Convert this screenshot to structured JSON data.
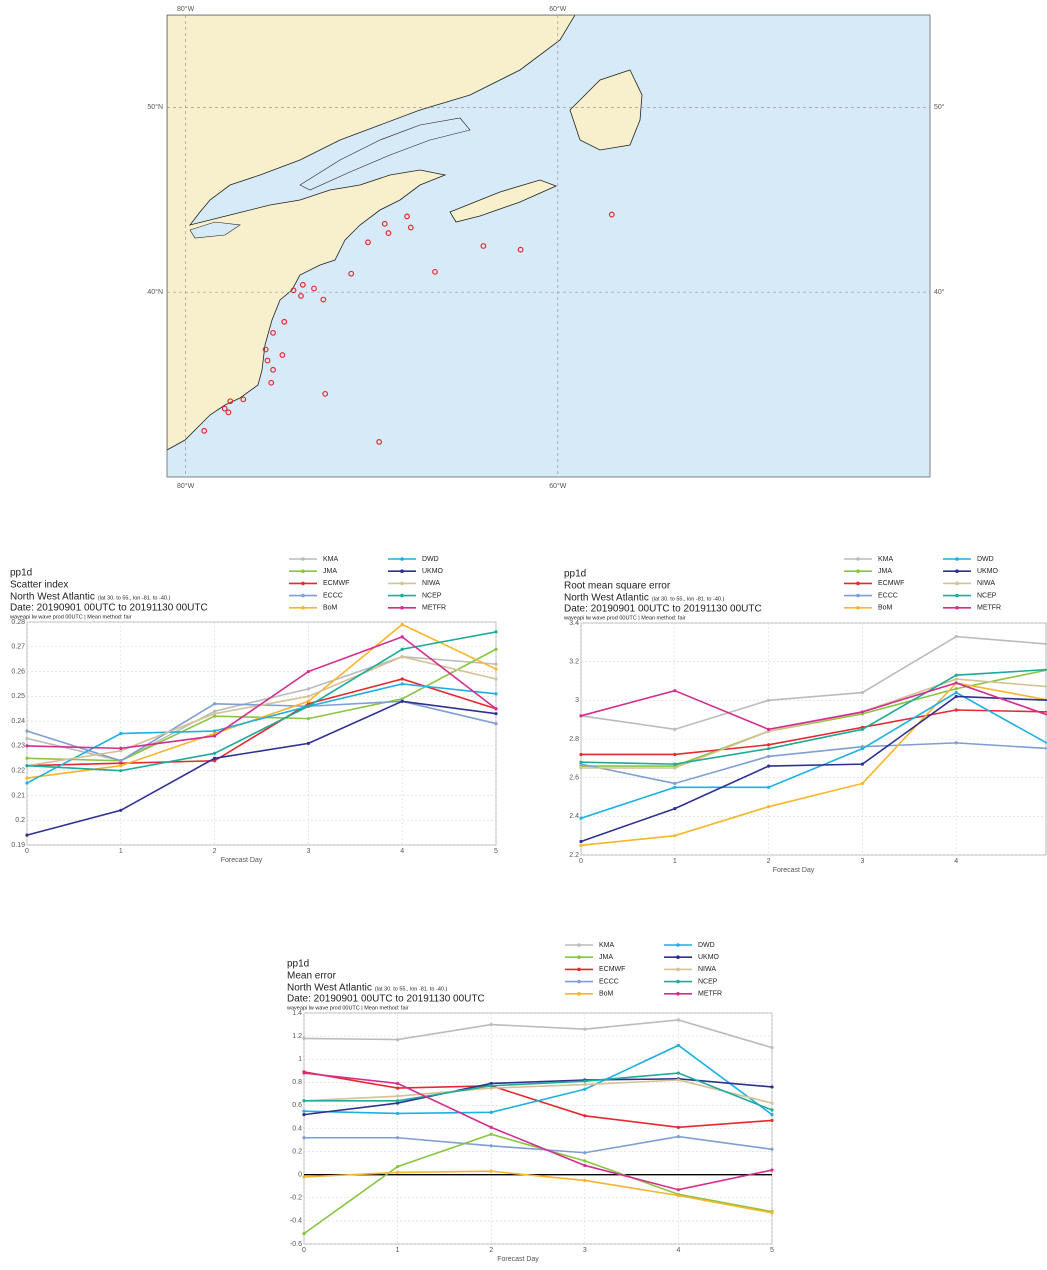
{
  "chart_data": [
    {
      "type": "map",
      "xlim": [
        -81,
        -40
      ],
      "ylim": [
        30,
        55
      ],
      "xticks": [
        {
          "value": -80,
          "label": "80°W"
        },
        {
          "value": -60,
          "label": "60°W"
        }
      ],
      "yticks": [
        {
          "value": 50,
          "label": "50°N"
        },
        {
          "value": 40,
          "label": "40°N"
        }
      ],
      "y2ticks": [
        {
          "value": 50,
          "label": "50°"
        },
        {
          "value": 40,
          "label": "40°"
        }
      ],
      "color": "#e8282e",
      "grid": true,
      "x": [
        -57.1,
        -68.1,
        -69.3,
        -67.9,
        -69.1,
        -70.2,
        -64.0,
        -62.0,
        -66.6,
        -71.1,
        -73.7,
        -73.1,
        -74.2,
        -73.8,
        -72.6,
        -74.7,
        -75.3,
        -75.7,
        -74.8,
        -75.6,
        -75.3,
        -75.4,
        -72.5,
        -76.9,
        -77.6,
        -77.9,
        -77.7,
        -79.0,
        -69.6
      ],
      "values": [
        44.2,
        44.1,
        43.7,
        43.5,
        43.2,
        42.7,
        42.5,
        42.3,
        41.1,
        41.0,
        40.4,
        40.2,
        40.1,
        39.8,
        39.6,
        38.4,
        37.8,
        36.9,
        36.6,
        36.3,
        35.8,
        35.1,
        34.5,
        34.2,
        34.1,
        33.7,
        33.5,
        32.5,
        31.9
      ]
    },
    {
      "type": "line",
      "title": "pp1d",
      "subtitle": "Scatter index",
      "region": "North West Atlantic",
      "region_note": "(lat 30. to 55., lon -81. to -40.)",
      "date_range": "Date: 20190901 00UTC to 20191130 00UTC",
      "source_note": "waveapi lw wave prod 00UTC | Mean method: fair",
      "xlabel": "Forecast Day",
      "x": [
        0,
        1,
        2,
        3,
        4,
        5
      ],
      "xlim": [
        0,
        5
      ],
      "xticks": [
        0,
        1,
        2,
        3,
        4,
        5
      ],
      "ylim": [
        0.19,
        0.28
      ],
      "yticks": [
        0.19,
        0.2,
        0.21,
        0.22,
        0.23,
        0.24,
        0.25,
        0.26,
        0.27,
        0.28
      ],
      "grid": true,
      "series": [
        {
          "name": "KMA",
          "color": "#bbbbbb",
          "values": [
            0.233,
            0.224,
            0.244,
            0.253,
            0.266,
            0.263
          ]
        },
        {
          "name": "JMA",
          "color": "#88c540",
          "values": [
            0.225,
            0.224,
            0.242,
            0.241,
            0.249,
            0.269
          ]
        },
        {
          "name": "ECMWF",
          "color": "#e8282e",
          "values": [
            0.222,
            0.223,
            0.224,
            0.247,
            0.257,
            0.245
          ]
        },
        {
          "name": "ECCC",
          "color": "#7f9ed4",
          "values": [
            0.236,
            0.224,
            0.247,
            0.246,
            0.248,
            0.239
          ]
        },
        {
          "name": "BoM",
          "color": "#f7b52a",
          "values": [
            0.217,
            0.222,
            0.235,
            0.248,
            0.279,
            0.261
          ]
        },
        {
          "name": "DWD",
          "color": "#1cb0e3",
          "values": [
            0.215,
            0.235,
            0.236,
            0.246,
            0.255,
            0.251
          ]
        },
        {
          "name": "UKMO",
          "color": "#2e3192",
          "values": [
            0.194,
            0.204,
            0.225,
            0.231,
            0.248,
            0.243
          ]
        },
        {
          "name": "NIWA",
          "color": "#d4c195",
          "values": [
            0.222,
            0.228,
            0.243,
            0.25,
            0.266,
            0.257
          ]
        },
        {
          "name": "NCEP",
          "color": "#1eab98",
          "values": [
            0.222,
            0.22,
            0.227,
            0.246,
            0.269,
            0.276
          ]
        },
        {
          "name": "METFR",
          "color": "#d42c8f",
          "values": [
            0.23,
            0.229,
            0.234,
            0.26,
            0.274,
            0.245
          ]
        }
      ]
    },
    {
      "type": "line",
      "title": "pp1d",
      "subtitle": "Root mean square error",
      "region": "North West Atlantic",
      "region_note": "(lat 30. to 55., lon -81. to -40.)",
      "date_range": "Date: 20190901 00UTC to 20191130 00UTC",
      "source_note": "waveapi lw wave prod 00UTC | Mean method: fair",
      "xlabel": "Forecast Day",
      "x": [
        0,
        1,
        2,
        3,
        4,
        5
      ],
      "xlim": [
        0,
        5
      ],
      "xticks": [
        0,
        1,
        2,
        3,
        4
      ],
      "ylim": [
        2.2,
        3.4
      ],
      "yticks": [
        2.2,
        2.4,
        2.6,
        2.8,
        3,
        3.2,
        3.4
      ],
      "grid": true,
      "series": [
        {
          "name": "KMA",
          "color": "#bbbbbb",
          "values": [
            2.92,
            2.85,
            3.0,
            3.04,
            3.33,
            3.29
          ]
        },
        {
          "name": "JMA",
          "color": "#88c540",
          "values": [
            2.66,
            2.66,
            2.84,
            2.93,
            3.06,
            3.16
          ]
        },
        {
          "name": "ECMWF",
          "color": "#e8282e",
          "values": [
            2.72,
            2.72,
            2.77,
            2.86,
            2.95,
            2.94
          ]
        },
        {
          "name": "ECCC",
          "color": "#7f9ed4",
          "values": [
            2.67,
            2.57,
            2.71,
            2.76,
            2.78,
            2.75
          ]
        },
        {
          "name": "BoM",
          "color": "#f7b52a",
          "values": [
            2.25,
            2.3,
            2.45,
            2.57,
            3.09,
            3.0
          ]
        },
        {
          "name": "DWD",
          "color": "#1cb0e3",
          "values": [
            2.39,
            2.55,
            2.55,
            2.75,
            3.04,
            2.77
          ]
        },
        {
          "name": "UKMO",
          "color": "#2e3192",
          "values": [
            2.27,
            2.44,
            2.66,
            2.67,
            3.02,
            3.0
          ]
        },
        {
          "name": "NIWA",
          "color": "#d4c195",
          "values": [
            2.65,
            2.65,
            2.84,
            2.94,
            3.11,
            3.07
          ]
        },
        {
          "name": "NCEP",
          "color": "#1eab98",
          "values": [
            2.68,
            2.67,
            2.75,
            2.85,
            3.13,
            3.16
          ]
        },
        {
          "name": "METFR",
          "color": "#d42c8f",
          "values": [
            2.92,
            3.05,
            2.85,
            2.94,
            3.09,
            2.92
          ]
        }
      ]
    },
    {
      "type": "line",
      "title": "pp1d",
      "subtitle": "Mean error",
      "region": "North West Atlantic",
      "region_note": "(lat 30. to 55., lon -81. to -40.)",
      "date_range": "Date: 20190901 00UTC to 20191130 00UTC",
      "source_note": "waveapi lw wave prod 00UTC | Mean method: fair",
      "xlabel": "Forecast Day",
      "x": [
        0,
        1,
        2,
        3,
        4,
        5
      ],
      "xlim": [
        0,
        5
      ],
      "xticks": [
        0,
        1,
        2,
        3,
        4,
        5
      ],
      "ylim": [
        -0.6,
        1.4
      ],
      "yticks": [
        -0.6,
        -0.4,
        -0.2,
        0,
        0.2,
        0.4,
        0.6,
        0.8,
        1,
        1.2,
        1.4
      ],
      "grid": true,
      "zero_line": true,
      "series": [
        {
          "name": "KMA",
          "color": "#bbbbbb",
          "values": [
            1.18,
            1.17,
            1.3,
            1.26,
            1.34,
            1.1
          ]
        },
        {
          "name": "JMA",
          "color": "#88c540",
          "values": [
            -0.51,
            0.07,
            0.35,
            0.12,
            -0.17,
            -0.32
          ]
        },
        {
          "name": "ECMWF",
          "color": "#e8282e",
          "values": [
            0.89,
            0.75,
            0.77,
            0.51,
            0.41,
            0.47
          ]
        },
        {
          "name": "ECCC",
          "color": "#7f9ed4",
          "values": [
            0.32,
            0.32,
            0.25,
            0.19,
            0.33,
            0.22
          ]
        },
        {
          "name": "BoM",
          "color": "#f7b52a",
          "values": [
            -0.02,
            0.02,
            0.03,
            -0.05,
            -0.18,
            -0.33
          ]
        },
        {
          "name": "DWD",
          "color": "#1cb0e3",
          "values": [
            0.55,
            0.53,
            0.54,
            0.74,
            1.12,
            0.52
          ]
        },
        {
          "name": "UKMO",
          "color": "#2e3192",
          "values": [
            0.52,
            0.62,
            0.79,
            0.82,
            0.83,
            0.76
          ]
        },
        {
          "name": "NIWA",
          "color": "#d4c195",
          "values": [
            0.64,
            0.68,
            0.75,
            0.78,
            0.82,
            0.62
          ]
        },
        {
          "name": "NCEP",
          "color": "#1eab98",
          "values": [
            0.64,
            0.64,
            0.77,
            0.81,
            0.88,
            0.56
          ]
        },
        {
          "name": "METFR",
          "color": "#d42c8f",
          "values": [
            0.88,
            0.79,
            0.41,
            0.08,
            -0.13,
            0.04
          ]
        }
      ]
    }
  ]
}
